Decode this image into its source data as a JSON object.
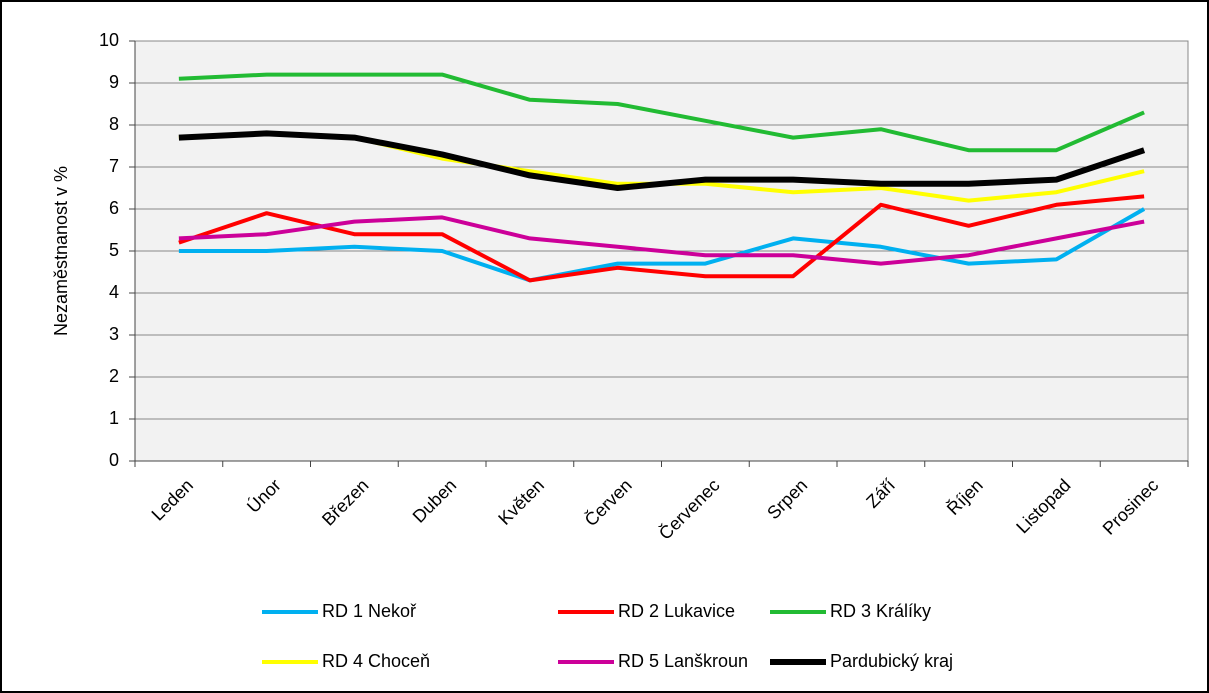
{
  "chart_data": {
    "type": "line",
    "ylabel": "Nezaměstnanost v %",
    "categories": [
      "Leden",
      "Únor",
      "Březen",
      "Duben",
      "Květen",
      "Červen",
      "Červenec",
      "Srpen",
      "Září",
      "Říjen",
      "Listopad",
      "Prosinec"
    ],
    "series": [
      {
        "name": "RD 1 Nekoř",
        "color": "#00b0f0",
        "values": [
          5.0,
          5.0,
          5.1,
          5.0,
          4.3,
          4.7,
          4.7,
          5.3,
          5.1,
          4.7,
          4.8,
          6.0
        ]
      },
      {
        "name": "RD 2 Lukavice",
        "color": "#ff0000",
        "values": [
          5.2,
          5.9,
          5.4,
          5.4,
          4.3,
          4.6,
          4.4,
          4.4,
          6.1,
          5.6,
          6.1,
          6.3
        ]
      },
      {
        "name": "RD 3 Králíky",
        "color": "#22bb33",
        "values": [
          9.1,
          9.2,
          9.2,
          9.2,
          8.6,
          8.5,
          8.1,
          7.7,
          7.9,
          7.4,
          7.4,
          8.3
        ]
      },
      {
        "name": "RD 4 Choceň",
        "color": "#ffff00",
        "values": [
          7.7,
          7.8,
          7.7,
          7.2,
          6.9,
          6.6,
          6.6,
          6.4,
          6.5,
          6.2,
          6.4,
          6.9
        ]
      },
      {
        "name": "RD 5 Lanškroun",
        "color": "#cc0099",
        "values": [
          5.3,
          5.4,
          5.7,
          5.8,
          5.3,
          5.1,
          4.9,
          4.9,
          4.7,
          4.9,
          5.3,
          5.7
        ]
      },
      {
        "name": "Pardubický kraj",
        "color": "#000000",
        "values": [
          7.7,
          7.8,
          7.7,
          7.3,
          6.8,
          6.5,
          6.7,
          6.7,
          6.6,
          6.6,
          6.7,
          7.4
        ]
      }
    ],
    "ylim": [
      0,
      10
    ],
    "yticks": [
      0,
      1,
      2,
      3,
      4,
      5,
      6,
      7,
      8,
      9,
      10
    ],
    "grid": true,
    "legend": "bottom"
  }
}
